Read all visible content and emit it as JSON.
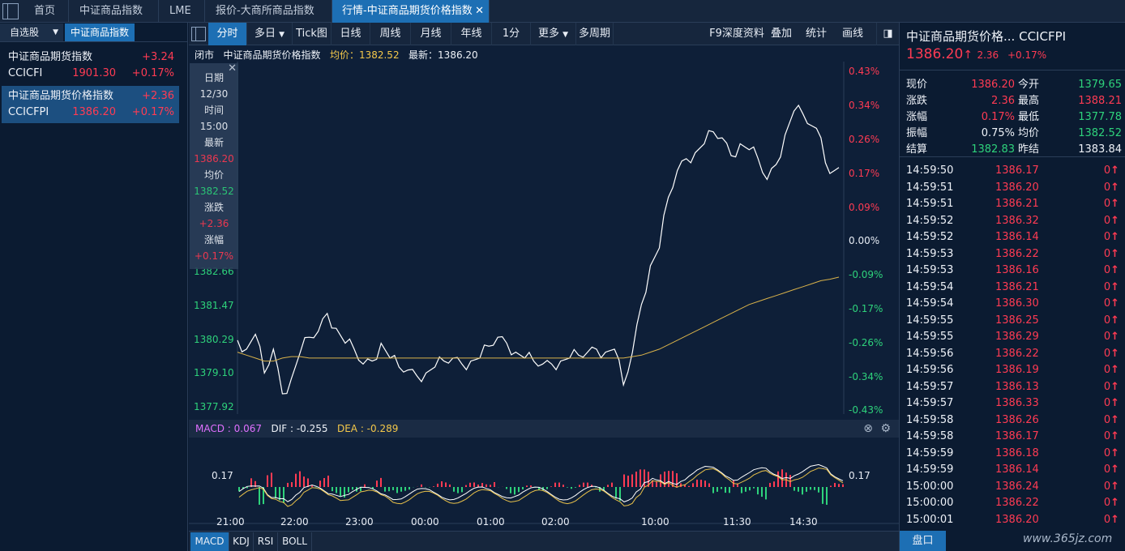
{
  "tabs": [
    {
      "label": "首页"
    },
    {
      "label": "中证商品指数"
    },
    {
      "label": "LME"
    },
    {
      "label": "报价-大商所商品指数"
    },
    {
      "label": "行情-中证商品期货价格指数",
      "close": "✕"
    }
  ],
  "sidebar": {
    "dropdown": "自选股",
    "active_tab": "中证商品指数",
    "items": [
      {
        "name": "中证商品期货指数",
        "change": "+3.24",
        "code": "CCICFI",
        "price": "1901.30",
        "pct": "+0.17%"
      },
      {
        "name": "中证商品期货价格指数",
        "change": "+2.36",
        "code": "CCICFPI",
        "price": "1386.20",
        "pct": "+0.17%"
      }
    ]
  },
  "toolbar": {
    "buttons": [
      "分时",
      "多日",
      "Tick图",
      "日线",
      "周线",
      "月线",
      "年线",
      "1分",
      "更多",
      "多周期"
    ],
    "right_buttons": [
      "F9深度资料",
      "叠加",
      "统计",
      "画线"
    ]
  },
  "info": {
    "status": "闭市",
    "name": "中证商品期货价格指数",
    "avg_label": "均价：",
    "avg": "1382.52",
    "last_label": "最新：",
    "last": "1386.20"
  },
  "hover": {
    "date_label": "日期",
    "date": "12/30",
    "time_label": "时间",
    "time": "15:00",
    "last_label": "最新",
    "last": "1386.20",
    "avg_label": "均价",
    "avg": "1382.52",
    "chg_label": "涨跌",
    "chg": "+2.36",
    "pct_label": "涨幅",
    "pct": "+0.17%",
    "close": "✕"
  },
  "macd": {
    "macd_label": "MACD : ",
    "macd": "0.067",
    "dif_label": "DIF : ",
    "dif": "-0.255",
    "dea_label": "DEA : ",
    "dea": "-0.289",
    "axis": "0.17"
  },
  "indicator_tabs": [
    "MACD",
    "KDJ",
    "RSI",
    "BOLL"
  ],
  "right": {
    "title": "中证商品期货价格...",
    "code": "CCICFPI",
    "price": "1386.20",
    "arrow": "↑",
    "chg": "2.36",
    "pct": "+0.17%",
    "details": [
      [
        "现价",
        "1386.20",
        "今开",
        "1379.65"
      ],
      [
        "涨跌",
        "2.36",
        "最高",
        "1388.21"
      ],
      [
        "涨幅",
        "0.17%",
        "最低",
        "1377.78"
      ],
      [
        "振幅",
        "0.75%",
        "均价",
        "1382.52"
      ],
      [
        "结算",
        "1382.83",
        "昨结",
        "1383.84"
      ]
    ],
    "ticks": [
      [
        "14:59:50",
        "1386.17",
        "0"
      ],
      [
        "14:59:51",
        "1386.20",
        "0"
      ],
      [
        "14:59:51",
        "1386.21",
        "0"
      ],
      [
        "14:59:52",
        "1386.32",
        "0"
      ],
      [
        "14:59:52",
        "1386.14",
        "0"
      ],
      [
        "14:59:53",
        "1386.22",
        "0"
      ],
      [
        "14:59:53",
        "1386.16",
        "0"
      ],
      [
        "14:59:54",
        "1386.21",
        "0"
      ],
      [
        "14:59:54",
        "1386.30",
        "0"
      ],
      [
        "14:59:55",
        "1386.25",
        "0"
      ],
      [
        "14:59:55",
        "1386.29",
        "0"
      ],
      [
        "14:59:56",
        "1386.22",
        "0"
      ],
      [
        "14:59:56",
        "1386.19",
        "0"
      ],
      [
        "14:59:57",
        "1386.13",
        "0"
      ],
      [
        "14:59:57",
        "1386.33",
        "0"
      ],
      [
        "14:59:58",
        "1386.26",
        "0"
      ],
      [
        "14:59:58",
        "1386.17",
        "0"
      ],
      [
        "14:59:59",
        "1386.18",
        "0"
      ],
      [
        "14:59:59",
        "1386.14",
        "0"
      ],
      [
        "15:00:00",
        "1386.24",
        "0"
      ],
      [
        "15:00:00",
        "1386.22",
        "0"
      ],
      [
        "15:00:01",
        "1386.20",
        "0"
      ]
    ],
    "pankou": "盘口"
  },
  "watermark": "www.365jz.com",
  "chart_data": {
    "type": "line",
    "title": "中证商品期货价格指数",
    "x_ticks": [
      "21:00",
      "22:00",
      "23:00",
      "00:00",
      "01:00",
      "02:00",
      "10:00",
      "11:30",
      "14:30"
    ],
    "y_ticks_left": [
      "1382.66",
      "1381.47",
      "1380.29",
      "1379.10",
      "1377.92"
    ],
    "y_ticks_right": [
      "0.43%",
      "0.34%",
      "0.26%",
      "0.17%",
      "0.09%",
      "0.00%",
      "-0.09%",
      "-0.17%",
      "-0.26%",
      "-0.34%",
      "-0.43%"
    ],
    "prev_settle": 1383.84,
    "ylim": [
      1377.92,
      1389.76
    ],
    "series": [
      {
        "name": "最新",
        "values": [
          1380.4,
          1380.1,
          1380.6,
          1379.3,
          1380.1,
          1378.6,
          1379.1,
          1380.0,
          1380.5,
          1380.7,
          1381.3,
          1380.8,
          1380.3,
          1380.1,
          1379.6,
          1379.7,
          1380.3,
          1379.8,
          1379.5,
          1379.4,
          1379.2,
          1379.3,
          1379.5,
          1379.7,
          1379.8,
          1379.6,
          1379.7,
          1379.8,
          1380.2,
          1380.5,
          1380.3,
          1380.0,
          1379.8,
          1379.7,
          1379.6,
          1379.6,
          1379.7,
          1379.8,
          1379.9,
          1380.0,
          1380.1,
          1380.0,
          1380.1,
          1378.9,
          1380.0,
          1381.6,
          1382.9,
          1383.5,
          1385.2,
          1386.1,
          1386.5,
          1386.7,
          1387.0,
          1387.4,
          1387.2,
          1386.6,
          1387.0,
          1386.8,
          1386.5,
          1385.8,
          1386.3,
          1387.3,
          1388.1,
          1388.0,
          1387.6,
          1387.2,
          1386.0,
          1386.2
        ],
        "color": "#ffffff"
      },
      {
        "name": "均价",
        "values": [
          1380.0,
          1379.9,
          1379.8,
          1379.7,
          1379.7,
          1379.8,
          1379.85,
          1379.85,
          1379.8,
          1379.8,
          1379.8,
          1379.8,
          1379.8,
          1379.8,
          1379.8,
          1379.8,
          1379.8,
          1379.8,
          1379.8,
          1379.8,
          1379.8,
          1379.8,
          1379.8,
          1379.8,
          1379.8,
          1379.8,
          1379.8,
          1379.8,
          1379.8,
          1379.8,
          1379.8,
          1379.8,
          1379.8,
          1379.8,
          1379.8,
          1379.8,
          1379.8,
          1379.8,
          1379.8,
          1379.8,
          1379.8,
          1379.8,
          1379.8,
          1379.8,
          1379.85,
          1379.9,
          1380.0,
          1380.1,
          1380.25,
          1380.4,
          1380.55,
          1380.7,
          1380.85,
          1381.0,
          1381.15,
          1381.3,
          1381.45,
          1381.6,
          1381.7,
          1381.8,
          1381.9,
          1382.0,
          1382.1,
          1382.2,
          1382.3,
          1382.4,
          1382.45,
          1382.52
        ],
        "color": "#d9b24a"
      }
    ]
  },
  "colors": {
    "up": "#ff3b53",
    "down": "#2ed27b",
    "accent": "#1d6fb4",
    "avg": "#d9b24a",
    "dea": "#e8c14a",
    "dif": "#ffffff"
  }
}
